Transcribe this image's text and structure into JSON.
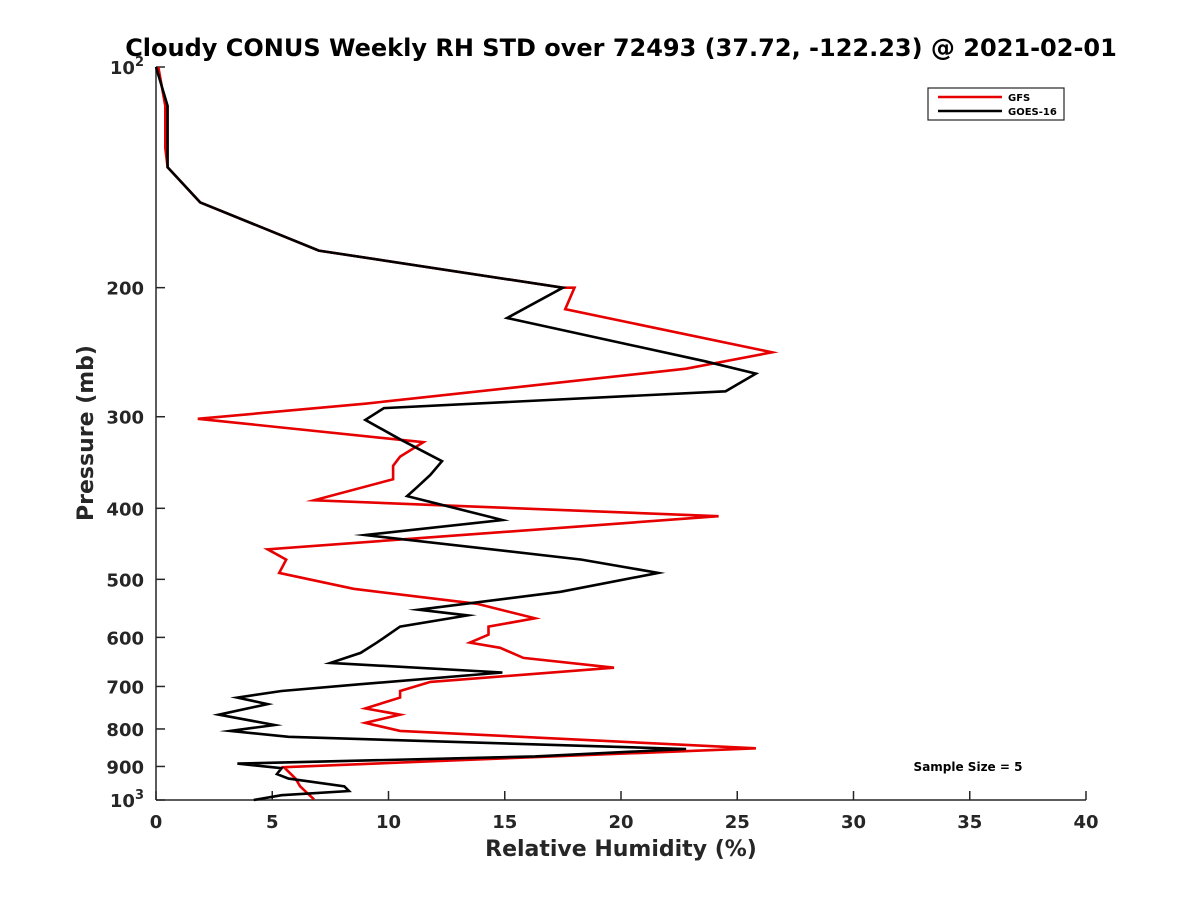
{
  "chart_data": {
    "type": "line",
    "title": "Cloudy CONUS Weekly RH STD over 72493 (37.72, -122.23) @ 2021-02-01",
    "xlabel": "Relative Humidity (%)",
    "ylabel": "Pressure (mb)",
    "xlim": [
      0,
      40
    ],
    "ylim": [
      100,
      1000
    ],
    "y_scale": "log",
    "y_reversed": true,
    "grid": false,
    "legend_location": "top-right",
    "x_ticks": [
      0,
      5,
      10,
      15,
      20,
      25,
      30,
      35,
      40
    ],
    "x_tick_labels": [
      "0",
      "5",
      "10",
      "15",
      "20",
      "25",
      "30",
      "35",
      "40"
    ],
    "y_ticks": [
      200,
      300,
      400,
      500,
      600,
      700,
      800,
      900
    ],
    "y_tick_labels": [
      "200",
      "300",
      "400",
      "500",
      "600",
      "700",
      "800",
      "900"
    ],
    "y_end_labels": [
      {
        "value": 100,
        "base": "10",
        "exp": "2"
      },
      {
        "value": 1000,
        "base": "10",
        "exp": "3"
      }
    ],
    "annotation": "Sample Size = 5",
    "series": [
      {
        "name": "GFS",
        "color": "#e60000",
        "points": [
          [
            0.1,
            100
          ],
          [
            0.4,
            113
          ],
          [
            0.4,
            129
          ],
          [
            0.5,
            137
          ],
          [
            1.9,
            153
          ],
          [
            7,
            178
          ],
          [
            17.5,
            200
          ],
          [
            18,
            200
          ],
          [
            17.6,
            214
          ],
          [
            26.5,
            245
          ],
          [
            22.8,
            258
          ],
          [
            9,
            288
          ],
          [
            1.8,
            302
          ],
          [
            11.5,
            325
          ],
          [
            10.5,
            340
          ],
          [
            10.2,
            350
          ],
          [
            10.2,
            365
          ],
          [
            6.8,
            390
          ],
          [
            24.2,
            410
          ],
          [
            4.8,
            455
          ],
          [
            5.6,
            470
          ],
          [
            5.3,
            490
          ],
          [
            8.5,
            515
          ],
          [
            13.8,
            540
          ],
          [
            16.3,
            565
          ],
          [
            14.3,
            580
          ],
          [
            14.3,
            595
          ],
          [
            13.5,
            610
          ],
          [
            14.8,
            620
          ],
          [
            15.8,
            640
          ],
          [
            19.7,
            660
          ],
          [
            11.8,
            690
          ],
          [
            10.5,
            710
          ],
          [
            10.5,
            725
          ],
          [
            9,
            750
          ],
          [
            10.5,
            765
          ],
          [
            9,
            785
          ],
          [
            10.5,
            805
          ],
          [
            25.8,
            850
          ],
          [
            5.5,
            902
          ],
          [
            6,
            935
          ],
          [
            6.2,
            958
          ],
          [
            6.5,
            978
          ],
          [
            6.8,
            998
          ]
        ]
      },
      {
        "name": "GOES-16",
        "color": "#000000",
        "points": [
          [
            0,
            100
          ],
          [
            0.5,
            113
          ],
          [
            0.5,
            129
          ],
          [
            0.5,
            137
          ],
          [
            1.9,
            153
          ],
          [
            7,
            178
          ],
          [
            17.5,
            200
          ],
          [
            15.1,
            220
          ],
          [
            23.6,
            252
          ],
          [
            25.8,
            262
          ],
          [
            24.5,
            277
          ],
          [
            9.8,
            292
          ],
          [
            9,
            303
          ],
          [
            10.5,
            322
          ],
          [
            12.3,
            345
          ],
          [
            11.8,
            360
          ],
          [
            11.2,
            375
          ],
          [
            10.8,
            385
          ],
          [
            14.9,
            415
          ],
          [
            9,
            435
          ],
          [
            18.3,
            470
          ],
          [
            21.6,
            490
          ],
          [
            17.4,
            520
          ],
          [
            11.3,
            550
          ],
          [
            13.4,
            560
          ],
          [
            10.5,
            580
          ],
          [
            9.5,
            610
          ],
          [
            8.8,
            630
          ],
          [
            7.5,
            650
          ],
          [
            14.9,
            670
          ],
          [
            8.8,
            695
          ],
          [
            5.4,
            710
          ],
          [
            3.5,
            725
          ],
          [
            4.8,
            740
          ],
          [
            2.7,
            765
          ],
          [
            5.1,
            790
          ],
          [
            3.2,
            805
          ],
          [
            5.7,
            820
          ],
          [
            22.8,
            852
          ],
          [
            16.3,
            872
          ],
          [
            3.5,
            892
          ],
          [
            5.4,
            905
          ],
          [
            5.2,
            922
          ],
          [
            5.7,
            935
          ],
          [
            8.1,
            958
          ],
          [
            8.3,
            972
          ],
          [
            5.4,
            985
          ],
          [
            4.2,
            1000
          ]
        ]
      }
    ]
  }
}
